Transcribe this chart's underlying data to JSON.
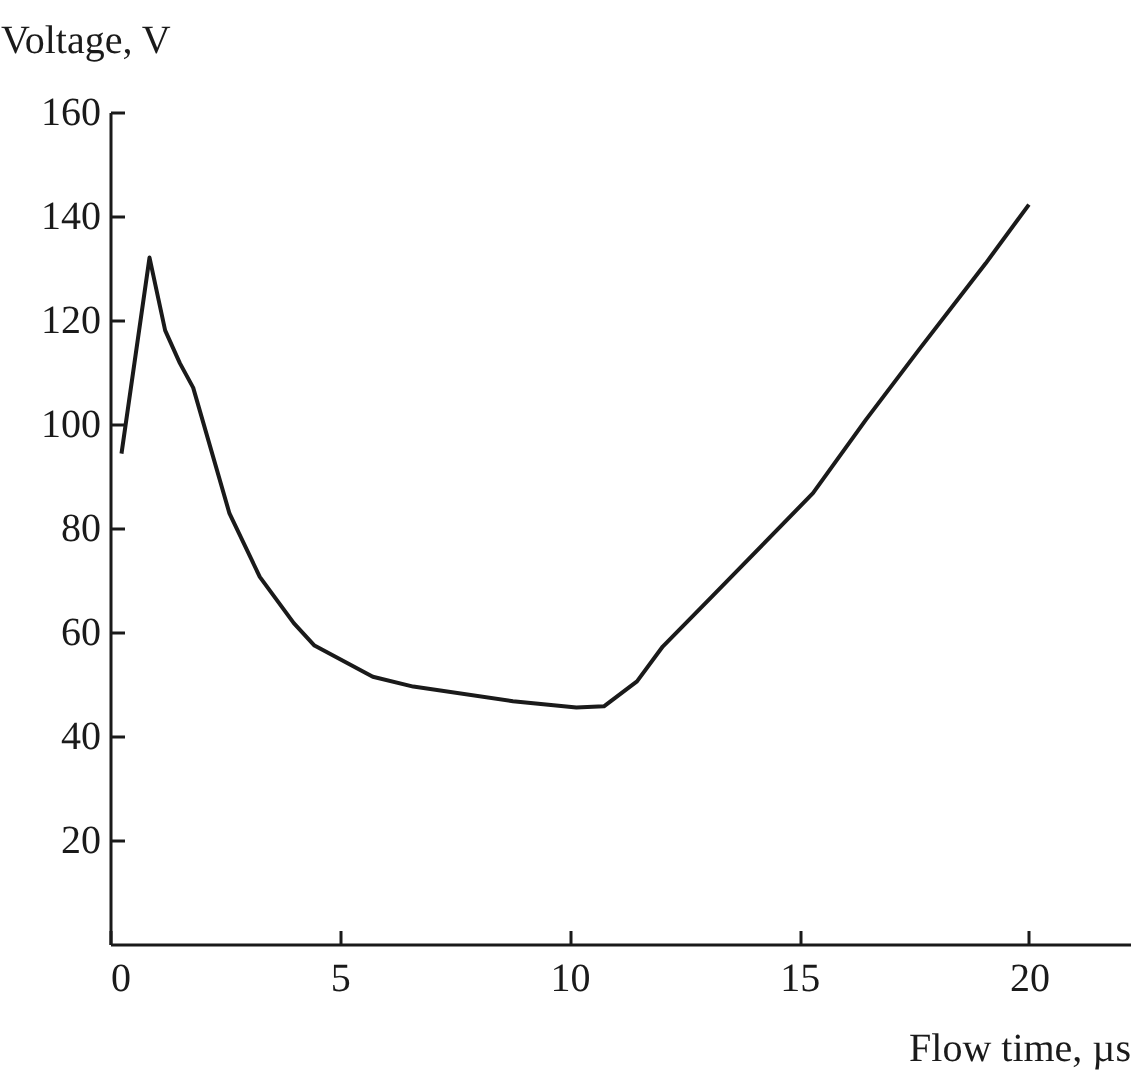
{
  "chart_data": {
    "type": "line",
    "xlabel": "Flow time, µs",
    "ylabel": "Voltage, V",
    "xlim": [
      0,
      22.2
    ],
    "ylim": [
      0,
      160
    ],
    "xticks": [
      0,
      5,
      10,
      15,
      20
    ],
    "yticks": [
      20,
      40,
      60,
      80,
      100,
      120,
      140,
      160
    ],
    "grid": false,
    "series": [
      {
        "color": "#1a1a1a",
        "x": [
          0.25,
          0.86,
          1.2,
          1.52,
          1.81,
          2.6,
          3.26,
          4.0,
          4.45,
          5.72,
          6.6,
          8.77,
          10.15,
          10.75,
          11.47,
          12.03,
          13.1,
          15.3,
          16.45,
          17.6,
          19.06,
          20.0
        ],
        "values": [
          94.3,
          132,
          118,
          111.7,
          107,
          82.8,
          70.6,
          61.7,
          57.4,
          51.4,
          49.5,
          46.7,
          45.5,
          45.7,
          50.5,
          57.2,
          66.8,
          86.7,
          100.8,
          114.2,
          130.9,
          142.2
        ]
      }
    ]
  }
}
